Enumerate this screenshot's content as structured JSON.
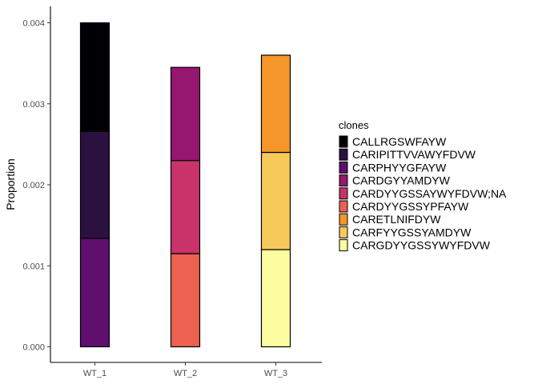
{
  "chart_data": {
    "type": "bar",
    "stacked": true,
    "title": "",
    "xlabel": "",
    "ylabel": "Proportion",
    "ylim": [
      0,
      0.004
    ],
    "yticks": [
      "0.000",
      "0.001",
      "0.002",
      "0.003",
      "0.004"
    ],
    "categories": [
      "WT_1",
      "WT_2",
      "WT_3"
    ],
    "legend": {
      "title": "clones",
      "placement": "right"
    },
    "series": [
      {
        "name": "CALLRGSWFAYW",
        "color": "#000004",
        "values": [
          0.00134,
          0,
          0
        ]
      },
      {
        "name": "CARIPITTVVAWYFDVW",
        "color": "#2b1140",
        "values": [
          0.00132,
          0,
          0
        ]
      },
      {
        "name": "CARPHYYGFAYW",
        "color": "#5e0f6e",
        "values": [
          0.00134,
          0,
          0
        ]
      },
      {
        "name": "CARDGYYAMDYW",
        "color": "#96176f",
        "values": [
          0,
          0.00115,
          0
        ]
      },
      {
        "name": "CARDYYGSSAYWYFDVW;NA",
        "color": "#c9336a",
        "values": [
          0,
          0.00115,
          0
        ]
      },
      {
        "name": "CARDYYGSSYPFAYW",
        "color": "#ed6150",
        "values": [
          0,
          0.00115,
          0
        ]
      },
      {
        "name": "CARETLNIFDYW",
        "color": "#f5962a",
        "values": [
          0,
          0,
          0.0012
        ]
      },
      {
        "name": "CARFYYGSSYAMDYW",
        "color": "#f6c95a",
        "values": [
          0,
          0,
          0.0012
        ]
      },
      {
        "name": "CARGDYYGSSYWYFDVW",
        "color": "#fcfca0",
        "values": [
          0,
          0,
          0.0012
        ]
      }
    ],
    "stack_order_top_to_bottom": [
      [
        "CALLRGSWFAYW",
        "CARIPITTVVAWYFDVW",
        "CARPHYYGFAYW"
      ],
      [
        "CARDGYYAMDYW",
        "CARDYYGSSAYWYFDVW;NA",
        "CARDYYGSSYPFAYW"
      ],
      [
        "CARETLNIFDYW",
        "CARFYYGSSYAMDYW",
        "CARGDYYGSSYWYFDVW"
      ]
    ],
    "grid": false
  }
}
